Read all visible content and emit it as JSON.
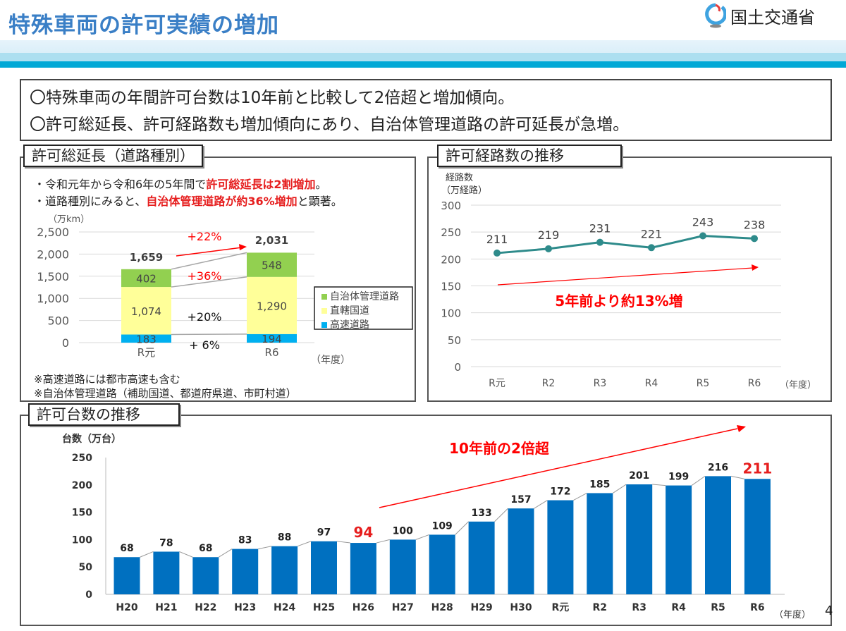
{
  "header": {
    "title": "特殊車両の許可実績の増加",
    "logo_text": "国土交通省",
    "accent": "#3a7fc6"
  },
  "summary": {
    "line1": "〇特殊車両の年間許可台数は10年前と比較して2倍超と増加傾向。",
    "line2": "〇許可総延長、許可経路数も増加傾向にあり、自治体管理道路の許可延長が急増。"
  },
  "left_panel": {
    "title": "許可総延長（道路種別）",
    "bullet1_a": "・令和元年から令和6年の5年間で",
    "bullet1_b": "許可総延長は2割増加",
    "bullet1_c": "。",
    "bullet2_a": "・道路種別にみると、",
    "bullet2_b": "自治体管理道路が約36%増加",
    "bullet2_c": "と顕著。",
    "footnote1": "※高速道路には都市高速も含む",
    "footnote2": "※自治体管理道路（補助国道、都道府県道、市町村道）"
  },
  "right_panel": {
    "title": "許可経路数の推移"
  },
  "bottom_panel": {
    "title": "許可台数の推移"
  },
  "page_number": "4",
  "chart_data": [
    {
      "type": "bar",
      "stacked": true,
      "categories": [
        "R元",
        "R6"
      ],
      "series": [
        {
          "name": "高速道路",
          "values": [
            183,
            194
          ],
          "color": "#00b0f0"
        },
        {
          "name": "直轄国道",
          "values": [
            1074,
            1290
          ],
          "color": "#ffff99"
        },
        {
          "name": "自治体管理道路",
          "values": [
            402,
            548
          ],
          "color": "#92d050"
        }
      ],
      "totals": [
        "1,659",
        "2,031"
      ],
      "value_labels": [
        [
          "183",
          "1,074",
          "402"
        ],
        [
          "194",
          "1,290",
          "548"
        ]
      ],
      "ylabel": "（万km）",
      "xlabel": "（年度）",
      "ylim": [
        0,
        2500
      ],
      "yticks": [
        "0",
        "500",
        "1,000",
        "1,500",
        "2,000",
        "2,500"
      ],
      "annotations": {
        "total": "+22%",
        "local": "+36%",
        "national": "+20%",
        "expressway": "+ 6%"
      },
      "legend": "right",
      "grid": true
    },
    {
      "type": "line",
      "categories": [
        "R元",
        "R2",
        "R3",
        "R4",
        "R5",
        "R6"
      ],
      "values": [
        211,
        219,
        231,
        221,
        243,
        238
      ],
      "ylabel_line1": "経路数",
      "ylabel_line2": "（万経路）",
      "xlabel": "（年度）",
      "ylim": [
        0,
        300
      ],
      "yticks": [
        0,
        50,
        100,
        150,
        200,
        250,
        300
      ],
      "annotation": "5年前より約13%増",
      "color": "#2e8b8b",
      "grid": true
    },
    {
      "type": "bar",
      "categories": [
        "H20",
        "H21",
        "H22",
        "H23",
        "H24",
        "H25",
        "H26",
        "H27",
        "H28",
        "H29",
        "H30",
        "R元",
        "R2",
        "R3",
        "R4",
        "R5",
        "R6"
      ],
      "values": [
        68,
        78,
        68,
        83,
        88,
        97,
        94,
        100,
        109,
        133,
        157,
        172,
        185,
        201,
        199,
        216,
        211
      ],
      "highlighted": [
        "H26",
        "R6"
      ],
      "ylabel": "台数（万台）",
      "xlabel": "（年度）",
      "ylim": [
        0,
        250
      ],
      "yticks": [
        0,
        50,
        100,
        150,
        200,
        250
      ],
      "annotation": "10年前の2倍超",
      "color": "#0070c0",
      "highlight_color": "#e61e1e",
      "grid": false
    }
  ]
}
